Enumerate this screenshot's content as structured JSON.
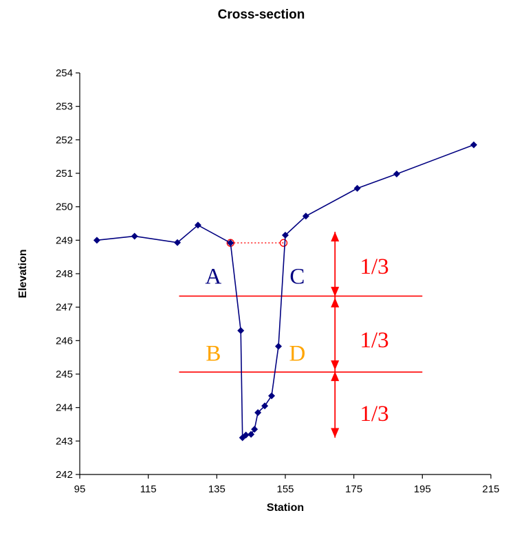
{
  "chart_data": {
    "type": "scatter",
    "title": "Cross-section",
    "xlabel": "Station",
    "ylabel": "Elevation",
    "xlim": [
      95,
      215
    ],
    "ylim": [
      242,
      254
    ],
    "xticks": [
      95,
      115,
      135,
      155,
      175,
      195,
      215
    ],
    "yticks": [
      242,
      243,
      244,
      245,
      246,
      247,
      248,
      249,
      250,
      251,
      252,
      253,
      254
    ],
    "grid": false,
    "legend": "none",
    "series": [
      {
        "color": "#000080",
        "marker": "diamond",
        "line": true,
        "points": [
          [
            100,
            249.0
          ],
          [
            111,
            249.12
          ],
          [
            123.5,
            248.93
          ],
          [
            129.5,
            249.45
          ],
          [
            139,
            248.92
          ],
          [
            142,
            246.3
          ],
          [
            142.5,
            243.1
          ],
          [
            143.5,
            243.18
          ],
          [
            145,
            243.2
          ],
          [
            146,
            243.35
          ],
          [
            147,
            243.85
          ],
          [
            149,
            244.05
          ],
          [
            151,
            244.35
          ],
          [
            153,
            245.83
          ],
          [
            155,
            249.15
          ],
          [
            161,
            249.72
          ],
          [
            176,
            250.55
          ],
          [
            187.5,
            250.98
          ],
          [
            210,
            251.85
          ]
        ]
      }
    ],
    "annotations": {
      "waterline": {
        "x": [
          139,
          154.5
        ],
        "y": 248.92,
        "color": "#ff0000",
        "style": "dotted"
      },
      "horizontal_lines": [
        {
          "y": 247.33,
          "x": [
            124,
            195
          ],
          "color": "#ff0000"
        },
        {
          "y": 245.06,
          "x": [
            124,
            195
          ],
          "color": "#ff0000"
        }
      ],
      "vertical_arrow": {
        "x": 169.5,
        "y": [
          243.1,
          249.25
        ],
        "breaks": [
          247.3,
          245.1
        ],
        "color": "#ff0000"
      },
      "point_labels": [
        {
          "text": "A",
          "x": 134,
          "y": 247.7,
          "color": "#000080"
        },
        {
          "text": "C",
          "x": 158.5,
          "y": 247.7,
          "color": "#000080"
        },
        {
          "text": "B",
          "x": 134,
          "y": 245.4,
          "color": "#ffa500"
        },
        {
          "text": "D",
          "x": 158.5,
          "y": 245.4,
          "color": "#ffa500"
        }
      ],
      "fraction_labels": [
        {
          "text": "1/3",
          "x": 181,
          "y": 248.0,
          "color": "#ff0000"
        },
        {
          "text": "1/3",
          "x": 181,
          "y": 245.8,
          "color": "#ff0000"
        },
        {
          "text": "1/3",
          "x": 181,
          "y": 243.6,
          "color": "#ff0000"
        }
      ]
    }
  }
}
